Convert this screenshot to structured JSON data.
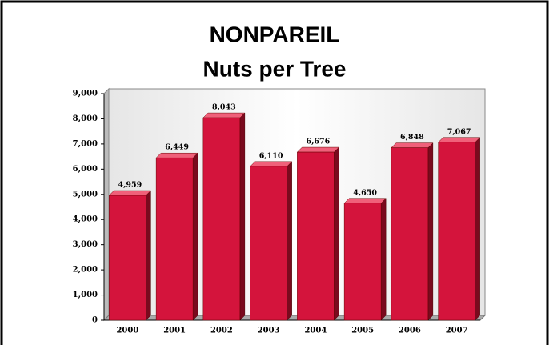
{
  "chart_data": {
    "type": "bar",
    "title": "NONPAREIL",
    "subtitle": "Nuts per Tree",
    "categories": [
      "2000",
      "2001",
      "2002",
      "2003",
      "2004",
      "2005",
      "2006",
      "2007"
    ],
    "values": [
      4959,
      6449,
      8043,
      6110,
      6676,
      4650,
      6848,
      7067
    ],
    "value_labels": [
      "4,959",
      "6,449",
      "8,043",
      "6,110",
      "6,676",
      "4,650",
      "6,848",
      "7,067"
    ],
    "color": "#d4143c",
    "ylim": [
      0,
      9000
    ],
    "yticks": [
      0,
      {
        "value": 1000,
        "label": "1,000"
      },
      {
        "value": 2000,
        "label": "2,000"
      },
      {
        "value": 3000,
        "label": "3,000"
      },
      {
        "value": 4000,
        "label": "4,000"
      },
      {
        "value": 5000,
        "label": "5,000"
      },
      {
        "value": 6000,
        "label": "6,000"
      },
      {
        "value": 7000,
        "label": "7,000"
      },
      {
        "value": 8000,
        "label": "8,000"
      },
      {
        "value": 9000,
        "label": "9,000"
      }
    ]
  }
}
